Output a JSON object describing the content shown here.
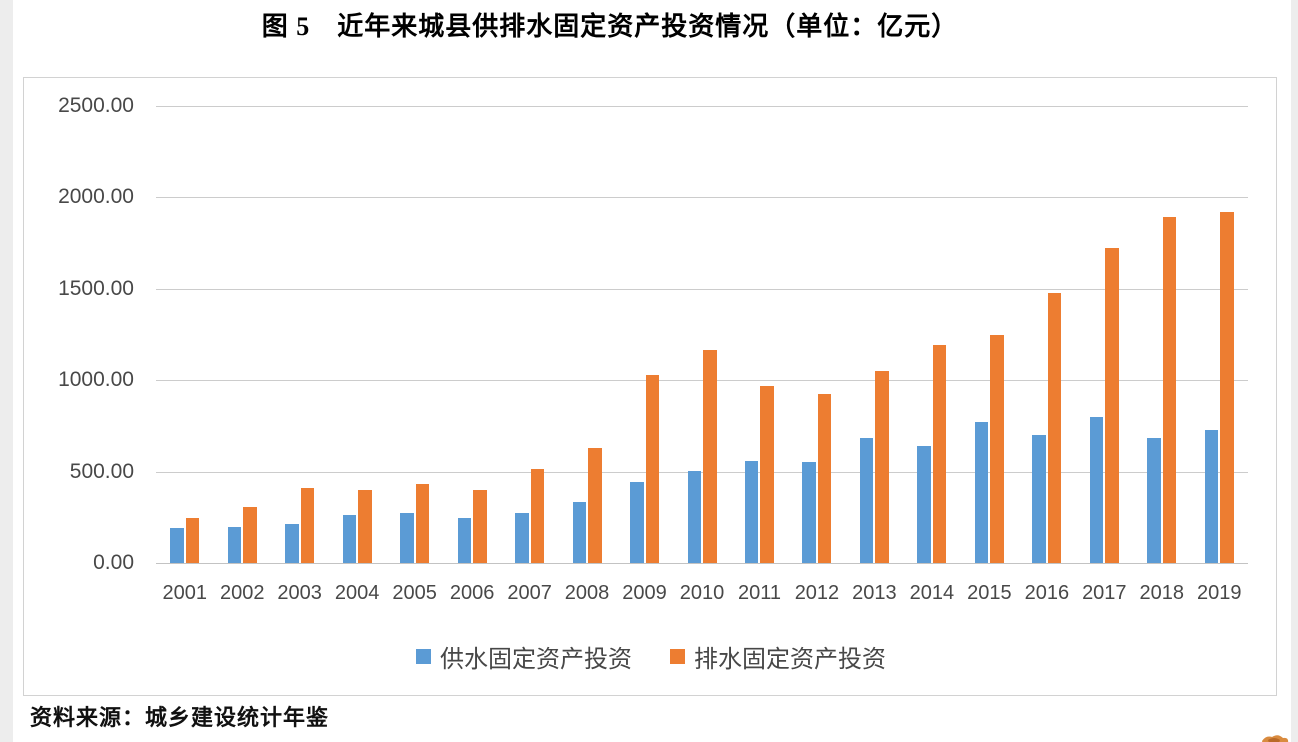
{
  "page": {
    "title": "图 5　近年来城县供排水固定资产投资情况（单位：亿元）",
    "source_note": "资料来源：城乡建设统计年鉴"
  },
  "colors": {
    "supply_series": "#5B9BD5",
    "drainage_series": "#ED7D31",
    "gridline": "#cccccc",
    "axis_text": "#484848"
  },
  "chart_data": {
    "type": "bar",
    "title": "图 5　近年来城县供排水固定资产投资情况（单位：亿元）",
    "unit": "亿元",
    "categories": [
      "2001",
      "2002",
      "2003",
      "2004",
      "2005",
      "2006",
      "2007",
      "2008",
      "2009",
      "2010",
      "2011",
      "2012",
      "2013",
      "2014",
      "2015",
      "2016",
      "2017",
      "2018",
      "2019"
    ],
    "series": [
      {
        "id": "supply",
        "name": "供水固定资产投资",
        "color": "#5B9BD5",
        "values": [
          190,
          195,
          215,
          265,
          275,
          245,
          275,
          335,
          440,
          505,
          555,
          550,
          685,
          640,
          770,
          700,
          800,
          685,
          725
        ]
      },
      {
        "id": "drainage",
        "name": "排水固定资产投资",
        "color": "#ED7D31",
        "values": [
          245,
          305,
          410,
          400,
          430,
          400,
          515,
          630,
          1030,
          1165,
          965,
          925,
          1050,
          1190,
          1245,
          1475,
          1720,
          1890,
          1920
        ]
      }
    ],
    "ylim": [
      0,
      2500
    ],
    "ytick_step": 500,
    "ytick_labels": [
      "0.00",
      "500.00",
      "1000.00",
      "1500.00",
      "2000.00",
      "2500.00"
    ],
    "grid": true,
    "legend_position": "bottom"
  }
}
